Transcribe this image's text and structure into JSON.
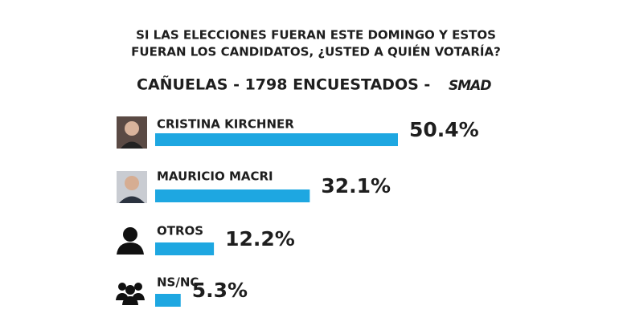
{
  "chart_data": {
    "type": "bar",
    "title": [
      "SI LAS ELECCIONES FUERAN ESTE DOMINGO Y ESTOS",
      "FUERAN LOS CANDIDATOS, ¿USTED A QUIÉN VOTARÍA?"
    ],
    "subtitle": "CAÑUELAS -  1798 ENCUESTADOS -",
    "logo": "SMAD",
    "categories": [
      "CRISTINA KIRCHNER",
      "MAURICIO MACRI",
      "OTROS",
      "NS/NC"
    ],
    "values": [
      50.4,
      32.1,
      12.2,
      5.3
    ],
    "value_labels": [
      "50.4%",
      "32.1%",
      "12.2%",
      "5.3%"
    ],
    "color": "#1ea7e1"
  }
}
